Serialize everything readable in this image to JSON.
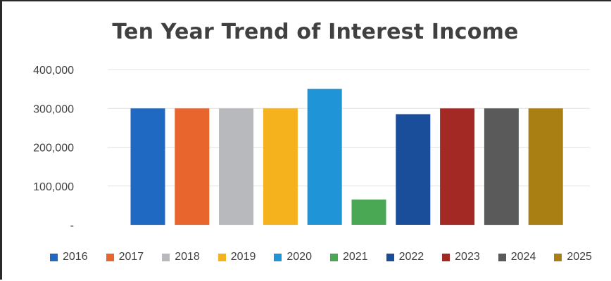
{
  "chart_data": {
    "type": "bar",
    "title": "Ten Year Trend of Interest Income",
    "xlabel": "",
    "ylabel": "",
    "categories": [
      "2016",
      "2017",
      "2018",
      "2019",
      "2020",
      "2021",
      "2022",
      "2023",
      "2024",
      "2025"
    ],
    "values": [
      300000,
      300000,
      300000,
      300000,
      350000,
      65000,
      285000,
      300000,
      300000,
      300000
    ],
    "colors": [
      "#1f69c2",
      "#e8652e",
      "#b8b9bc",
      "#f5b21c",
      "#1f95d8",
      "#4aa855",
      "#1a4e9a",
      "#a32a24",
      "#5a5a5a",
      "#a97e12"
    ],
    "ylim": [
      0,
      400000
    ],
    "yticks": [
      0,
      100000,
      200000,
      300000,
      400000
    ],
    "ytick_labels": [
      "-",
      "100,000",
      "200,000",
      "300,000",
      "400,000"
    ],
    "grid": true,
    "legend_position": "bottom"
  }
}
